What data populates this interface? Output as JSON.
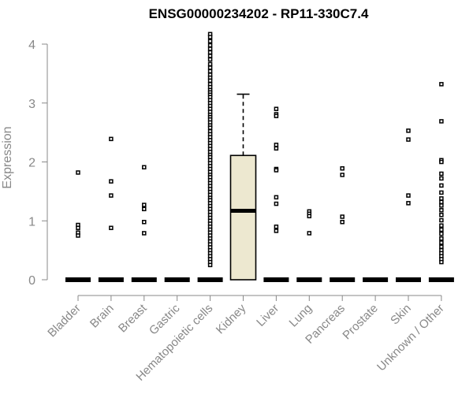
{
  "chart_data": {
    "type": "box",
    "title": "ENSG00000234202 - RP11-330C7.4",
    "xlabel": "",
    "ylabel": "Expression",
    "ylim": [
      0,
      4.2
    ],
    "yticks": [
      0,
      1,
      2,
      3,
      4
    ],
    "categories": [
      "Bladder",
      "Brain",
      "Breast",
      "Gastric",
      "Hematopoietic cells",
      "Kidney",
      "Liver",
      "Lung",
      "Pancreas",
      "Prostate",
      "Skin",
      "Unknown / Other"
    ],
    "box_fill": "#ede8d0",
    "boxes": [
      {
        "category": "Bladder",
        "median": 0,
        "q1": 0,
        "q3": 0,
        "whisker_low": 0,
        "whisker_high": 0,
        "outliers": [
          1.82,
          0.93,
          0.88,
          0.8,
          0.75
        ]
      },
      {
        "category": "Brain",
        "median": 0,
        "q1": 0,
        "q3": 0,
        "whisker_low": 0,
        "whisker_high": 0,
        "outliers": [
          2.39,
          1.67,
          1.43,
          0.88
        ]
      },
      {
        "category": "Breast",
        "median": 0,
        "q1": 0,
        "q3": 0,
        "whisker_low": 0,
        "whisker_high": 0,
        "outliers": [
          1.91,
          1.27,
          1.2,
          0.98,
          0.79
        ]
      },
      {
        "category": "Gastric",
        "median": 0,
        "q1": 0,
        "q3": 0,
        "whisker_low": 0,
        "whisker_high": 0,
        "outliers": []
      },
      {
        "category": "Hematopoietic cells",
        "median": 0,
        "q1": 0,
        "q3": 0,
        "whisker_low": 0,
        "whisker_high": 0,
        "outliers": [
          4.17,
          4.12,
          4.05,
          3.98,
          3.92,
          3.86,
          3.8,
          3.74,
          3.66,
          3.6,
          3.54,
          3.48,
          3.43,
          3.38,
          3.32,
          3.27,
          3.22,
          3.18,
          3.14,
          3.1,
          3.05,
          3.0,
          2.95,
          2.9,
          2.85,
          2.8,
          2.76,
          2.72,
          2.67,
          2.62,
          2.58,
          2.52,
          2.47,
          2.42,
          2.37,
          2.32,
          2.27,
          2.22,
          2.17,
          2.12,
          2.08,
          2.03,
          1.98,
          1.93,
          1.88,
          1.83,
          1.78,
          1.74,
          1.69,
          1.64,
          1.59,
          1.54,
          1.49,
          1.44,
          1.39,
          1.35,
          1.3,
          1.25,
          1.2,
          1.15,
          1.1,
          1.05,
          1.0,
          0.95,
          0.9,
          0.85,
          0.8,
          0.75,
          0.7,
          0.65,
          0.6,
          0.55,
          0.5,
          0.45,
          0.4,
          0.35,
          0.3,
          0.25
        ]
      },
      {
        "category": "Kidney",
        "median": 1.17,
        "q1": 0,
        "q3": 2.11,
        "whisker_low": 0,
        "whisker_high": 3.15,
        "outliers": []
      },
      {
        "category": "Liver",
        "median": 0,
        "q1": 0,
        "q3": 0,
        "whisker_low": 0,
        "whisker_high": 0,
        "outliers": [
          2.9,
          2.81,
          2.78,
          2.29,
          2.23,
          1.88,
          1.86,
          1.4,
          1.29,
          0.9,
          0.83
        ]
      },
      {
        "category": "Lung",
        "median": 0,
        "q1": 0,
        "q3": 0,
        "whisker_low": 0,
        "whisker_high": 0,
        "outliers": [
          1.16,
          1.12,
          1.08,
          0.79
        ]
      },
      {
        "category": "Pancreas",
        "median": 0,
        "q1": 0,
        "q3": 0,
        "whisker_low": 0,
        "whisker_high": 0,
        "outliers": [
          1.89,
          1.78,
          1.07,
          0.98
        ]
      },
      {
        "category": "Prostate",
        "median": 0,
        "q1": 0,
        "q3": 0,
        "whisker_low": 0,
        "whisker_high": 0,
        "outliers": []
      },
      {
        "category": "Skin",
        "median": 0,
        "q1": 0,
        "q3": 0,
        "whisker_low": 0,
        "whisker_high": 0,
        "outliers": [
          2.53,
          2.38,
          1.43,
          1.3
        ]
      },
      {
        "category": "Unknown / Other",
        "median": 0,
        "q1": 0,
        "q3": 0,
        "whisker_low": 0,
        "whisker_high": 0,
        "outliers": [
          3.32,
          2.69,
          2.03,
          2.0,
          1.8,
          1.72,
          1.6,
          1.48,
          1.38,
          1.32,
          1.26,
          1.18,
          1.1,
          1.01,
          0.92,
          0.85,
          0.78,
          0.7,
          0.63,
          0.56,
          0.5,
          0.45,
          0.4,
          0.35,
          0.3
        ]
      }
    ]
  }
}
